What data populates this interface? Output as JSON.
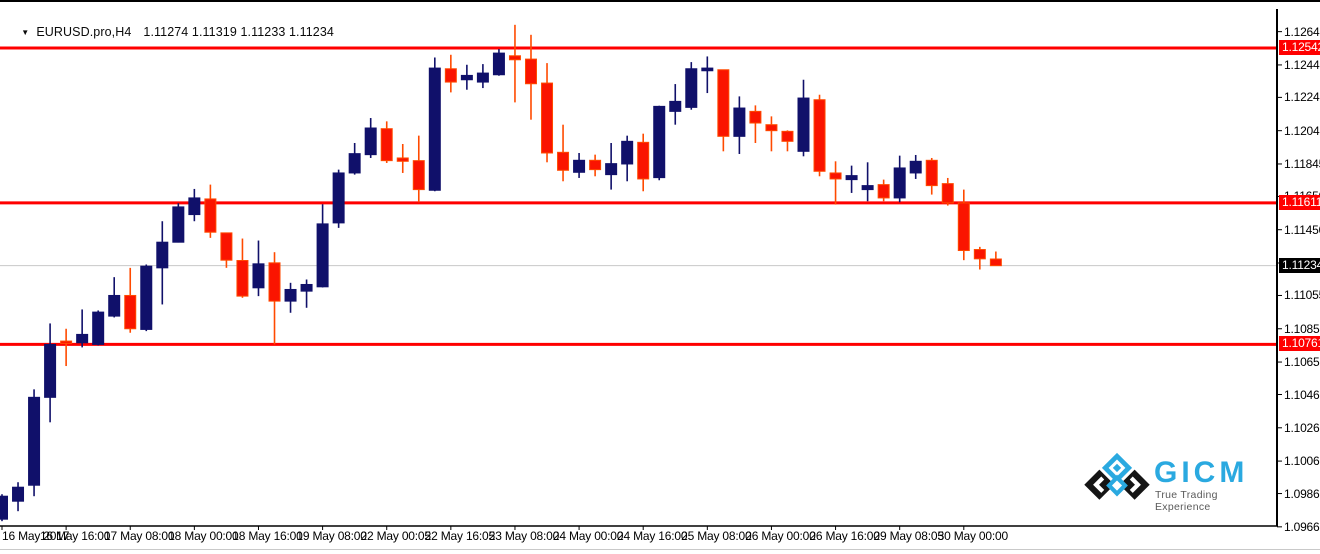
{
  "title": {
    "marker": "▼",
    "symbol": "EURUSD.pro,H4",
    "ohlc": "1.11274 1.11319 1.11233 1.11234"
  },
  "colors": {
    "bull": "#10106a",
    "bear_fill": "#fa1400",
    "bear_border": "#ff4a00",
    "level_line": "#ff0000",
    "level_label_bg": "#ff0000",
    "price_line": "#c8c8c8",
    "price_label_bg": "#000000",
    "axis_line": "#000000",
    "logo_blue": "#2aa9e0"
  },
  "logo": {
    "name": "GICM",
    "tagline": "True Trading Experience"
  },
  "chart_data": {
    "type": "candlestick",
    "symbol": "EURUSD.pro",
    "timeframe": "H4",
    "current_ohlc": {
      "open": 1.11274,
      "high": 1.11319,
      "low": 1.11233,
      "close": 1.11234
    },
    "y_range": [
      1.0967,
      1.1277
    ],
    "y_axis_ticks": [
      "1.12640",
      "1.12440",
      "1.12245",
      "1.12045",
      "1.11845",
      "1.11650",
      "1.11450",
      "1.11250",
      "1.11055",
      "1.10855",
      "1.10655",
      "1.10460",
      "1.10260",
      "1.10060",
      "1.09865",
      "1.09665"
    ],
    "h_lines": [
      {
        "price": 1.12542,
        "label": "1.12542",
        "type": "resistance"
      },
      {
        "price": 1.11611,
        "label": "1.11611",
        "type": "resistance"
      },
      {
        "price": 1.10761,
        "label": "1.10761",
        "type": "support"
      }
    ],
    "current_price_line": {
      "price": 1.11234,
      "label": "1.11234"
    },
    "x_axis_labels": [
      {
        "text": "16 May 2017",
        "candle_index": 0
      },
      {
        "text": "16 May 16:00",
        "candle_index": 4
      },
      {
        "text": "17 May 08:00",
        "candle_index": 8
      },
      {
        "text": "18 May 00:00",
        "candle_index": 12
      },
      {
        "text": "18 May 16:00",
        "candle_index": 16
      },
      {
        "text": "19 May 08:00",
        "candle_index": 20
      },
      {
        "text": "22 May 00:05",
        "candle_index": 24
      },
      {
        "text": "22 May 16:05",
        "candle_index": 28
      },
      {
        "text": "23 May 08:00",
        "candle_index": 32
      },
      {
        "text": "24 May 00:00",
        "candle_index": 36
      },
      {
        "text": "24 May 16:00",
        "candle_index": 40
      },
      {
        "text": "25 May 08:00",
        "candle_index": 44
      },
      {
        "text": "26 May 00:00",
        "candle_index": 48
      },
      {
        "text": "26 May 16:00",
        "candle_index": 52
      },
      {
        "text": "29 May 08:05",
        "candle_index": 56
      },
      {
        "text": "30 May 00:00",
        "candle_index": 60
      }
    ],
    "candles": [
      [
        "16 May 00:00",
        1.09711,
        1.09861,
        1.09699,
        1.09849
      ],
      [
        "16 May 04:00",
        1.09819,
        1.09933,
        1.09759,
        1.09903
      ],
      [
        "16 May 08:00",
        1.09915,
        1.10491,
        1.09849,
        1.10443
      ],
      [
        "16 May 12:00",
        1.10443,
        1.10887,
        1.10293,
        1.10761
      ],
      [
        "16 May 16:00",
        1.10781,
        1.10855,
        1.10631,
        1.10767
      ],
      [
        "16 May 20:00",
        1.10771,
        1.10971,
        1.10743,
        1.10821
      ],
      [
        "17 May 00:00",
        1.10761,
        1.10965,
        1.10755,
        1.10955
      ],
      [
        "17 May 04:00",
        1.10931,
        1.11165,
        1.10923,
        1.11055
      ],
      [
        "17 May 08:00",
        1.11055,
        1.11221,
        1.10831,
        1.10855
      ],
      [
        "17 May 12:00",
        1.10851,
        1.11241,
        1.10841,
        1.11231
      ],
      [
        "17 May 16:00",
        1.11221,
        1.11501,
        1.11001,
        1.11375
      ],
      [
        "17 May 20:00",
        1.11375,
        1.11609,
        1.11373,
        1.11587
      ],
      [
        "18 May 00:00",
        1.11541,
        1.11695,
        1.11501,
        1.11641
      ],
      [
        "18 May 04:00",
        1.11635,
        1.11721,
        1.11401,
        1.11435
      ],
      [
        "18 May 08:00",
        1.11431,
        1.11433,
        1.11221,
        1.11267
      ],
      [
        "18 May 12:00",
        1.11265,
        1.11397,
        1.11041,
        1.11051
      ],
      [
        "18 May 16:00",
        1.11101,
        1.11385,
        1.11051,
        1.11245
      ],
      [
        "18 May 20:00",
        1.11251,
        1.11315,
        1.10761,
        1.11021
      ],
      [
        "19 May 00:00",
        1.11021,
        1.11131,
        1.10951,
        1.11091
      ],
      [
        "19 May 04:00",
        1.11081,
        1.11151,
        1.10981,
        1.11121
      ],
      [
        "19 May 08:00",
        1.11107,
        1.11603,
        1.11103,
        1.11485
      ],
      [
        "19 May 12:00",
        1.11491,
        1.11811,
        1.11461,
        1.11791
      ],
      [
        "19 May 16:00",
        1.11791,
        1.11971,
        1.11781,
        1.11907
      ],
      [
        "19 May 20:00",
        1.11901,
        1.12121,
        1.11881,
        1.12061
      ],
      [
        "22 May 00:05",
        1.12057,
        1.12101,
        1.11851,
        1.11865
      ],
      [
        "22 May 04:00",
        1.11881,
        1.11965,
        1.11791,
        1.11861
      ],
      [
        "22 May 08:00",
        1.11865,
        1.12015,
        1.11615,
        1.11691
      ],
      [
        "22 May 12:00",
        1.11687,
        1.12485,
        1.11681,
        1.12421
      ],
      [
        "22 May 16:05",
        1.12417,
        1.12501,
        1.12275,
        1.12337
      ],
      [
        "22 May 20:00",
        1.12351,
        1.12441,
        1.12291,
        1.12377
      ],
      [
        "23 May 00:00",
        1.12337,
        1.12445,
        1.12301,
        1.12391
      ],
      [
        "23 May 04:00",
        1.12381,
        1.12535,
        1.12375,
        1.12511
      ],
      [
        "23 May 08:00",
        1.12495,
        1.12681,
        1.12215,
        1.12471
      ],
      [
        "23 May 12:00",
        1.12475,
        1.12621,
        1.12111,
        1.12327
      ],
      [
        "23 May 16:00",
        1.12331,
        1.12451,
        1.11855,
        1.11911
      ],
      [
        "23 May 20:00",
        1.11915,
        1.12081,
        1.11741,
        1.11807
      ],
      [
        "24 May 00:00",
        1.11795,
        1.11911,
        1.11761,
        1.11867
      ],
      [
        "24 May 04:00",
        1.11867,
        1.11901,
        1.11771,
        1.11811
      ],
      [
        "24 May 08:00",
        1.11781,
        1.11971,
        1.11691,
        1.11847
      ],
      [
        "24 May 12:00",
        1.11845,
        1.12015,
        1.11741,
        1.11981
      ],
      [
        "24 May 16:00",
        1.11975,
        1.12027,
        1.11681,
        1.11755
      ],
      [
        "24 May 20:00",
        1.11763,
        1.12195,
        1.11747,
        1.12191
      ],
      [
        "25 May 00:00",
        1.12161,
        1.12325,
        1.12081,
        1.12221
      ],
      [
        "25 May 04:00",
        1.12185,
        1.12457,
        1.12171,
        1.12417
      ],
      [
        "25 May 08:00",
        1.12405,
        1.12491,
        1.12271,
        1.12421
      ],
      [
        "25 May 12:00",
        1.12411,
        1.12411,
        1.11921,
        1.12011
      ],
      [
        "25 May 16:00",
        1.12011,
        1.12251,
        1.11905,
        1.12181
      ],
      [
        "25 May 20:00",
        1.12161,
        1.12197,
        1.11971,
        1.12091
      ],
      [
        "26 May 00:00",
        1.12081,
        1.12131,
        1.11921,
        1.12045
      ],
      [
        "26 May 04:00",
        1.12041,
        1.12047,
        1.11921,
        1.11981
      ],
      [
        "26 May 08:00",
        1.11921,
        1.12351,
        1.11891,
        1.12241
      ],
      [
        "26 May 12:00",
        1.12231,
        1.12261,
        1.11771,
        1.11801
      ],
      [
        "26 May 16:00",
        1.11791,
        1.11861,
        1.11601,
        1.11755
      ],
      [
        "26 May 20:00",
        1.11751,
        1.11835,
        1.11671,
        1.11775
      ],
      [
        "29 May 00:05",
        1.11691,
        1.11855,
        1.11621,
        1.11715
      ],
      [
        "29 May 04:00",
        1.11721,
        1.11751,
        1.11621,
        1.11641
      ],
      [
        "29 May 08:05",
        1.11641,
        1.11895,
        1.11615,
        1.11821
      ],
      [
        "29 May 12:00",
        1.11791,
        1.11899,
        1.11755,
        1.11861
      ],
      [
        "29 May 16:00",
        1.11867,
        1.11881,
        1.11661,
        1.11715
      ],
      [
        "29 May 20:00",
        1.11727,
        1.11761,
        1.11595,
        1.11611
      ],
      [
        "30 May 00:00",
        1.11611,
        1.11691,
        1.11267,
        1.11325
      ],
      [
        "30 May 04:00",
        1.11331,
        1.11347,
        1.11211,
        1.11275
      ],
      [
        "30 May 08:00",
        1.11274,
        1.11319,
        1.11233,
        1.11234
      ]
    ]
  }
}
